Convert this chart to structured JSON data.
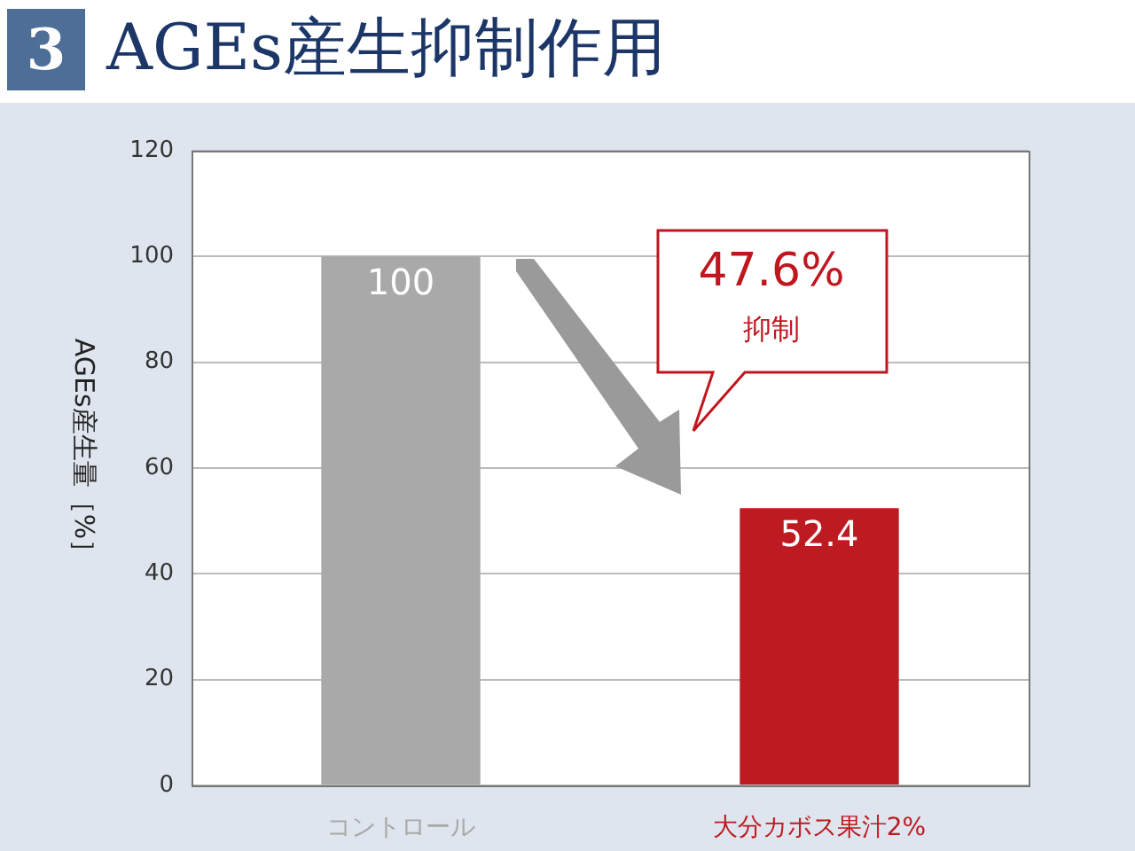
{
  "chart_data": {
    "type": "bar",
    "title": "AGEs産生抑制作用",
    "ylabel": "AGEs産生量［%］",
    "categories": [
      "コントロール",
      "大分カボス果汁2%"
    ],
    "values": [
      100,
      52.4
    ],
    "colors": [
      "#a9a9a9",
      "#be1a21"
    ],
    "ylim": [
      0,
      120
    ],
    "yticks": [
      0,
      20,
      40,
      60,
      80,
      100,
      120
    ],
    "grid": "y",
    "data_labels": true,
    "legend": false,
    "annotations": [
      "3",
      "47.6%",
      "抑制"
    ]
  }
}
